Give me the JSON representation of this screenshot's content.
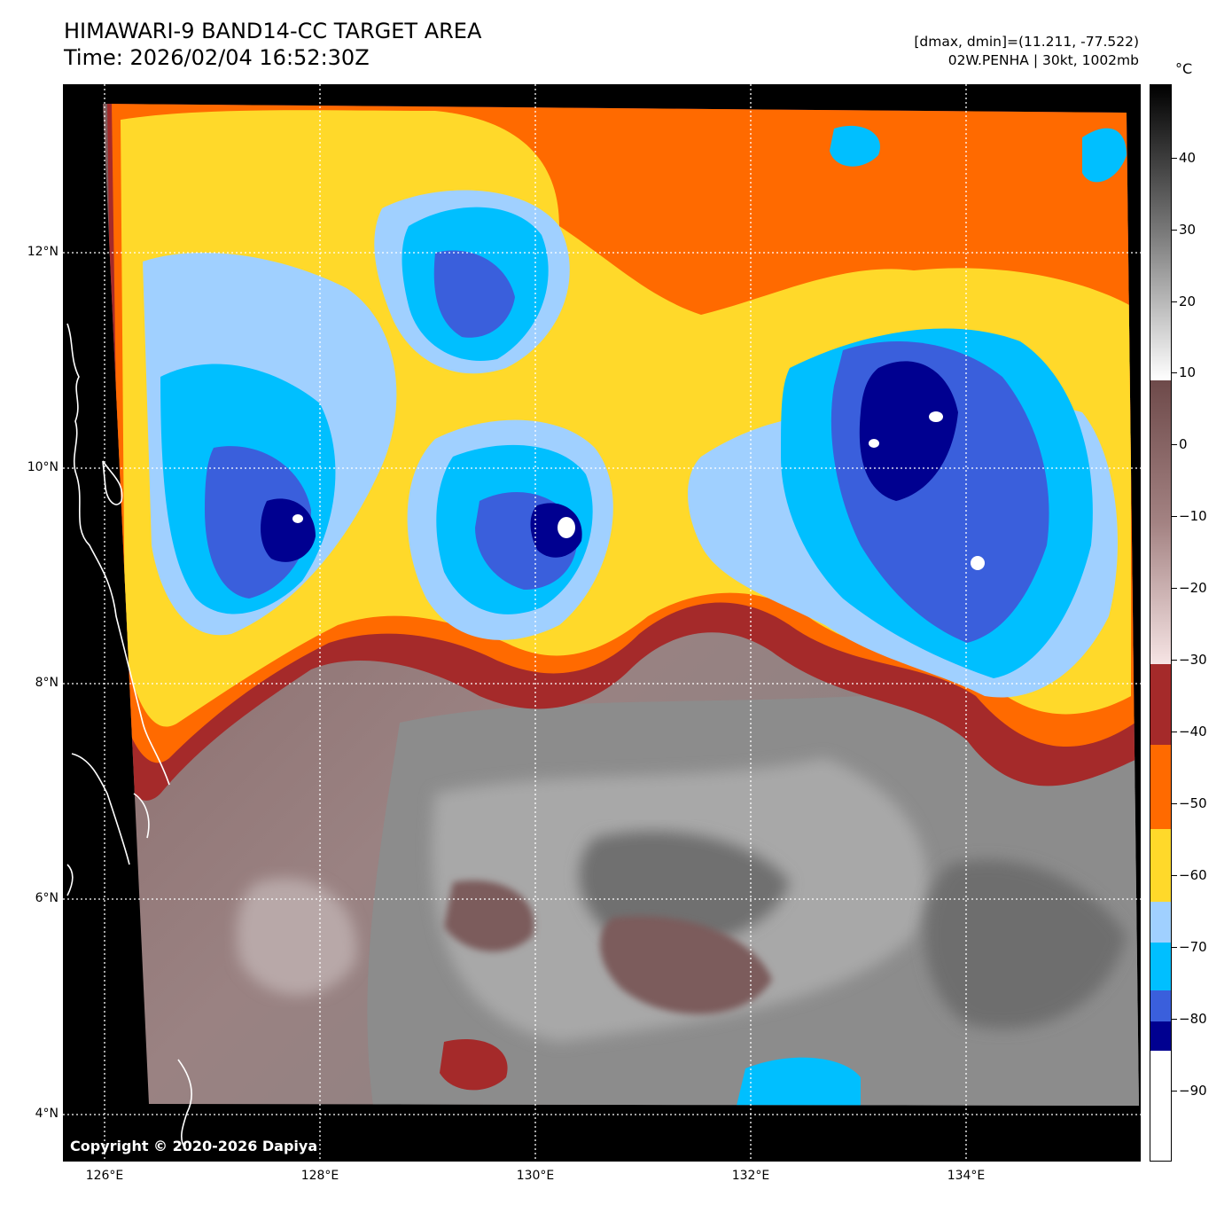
{
  "header": {
    "title_line1": "HIMAWARI-9 BAND14-CC TARGET AREA",
    "title_line2": "Time: 2026/02/04 16:52:30Z",
    "meta_line1": "[dmax, dmin]=(11.211, -77.522)",
    "meta_line2": "02W.PENHA | 30kt, 1002mb"
  },
  "map": {
    "lat_labels": [
      "12°N",
      "10°N",
      "8°N",
      "6°N",
      "4°N"
    ],
    "lon_labels": [
      "126°E",
      "128°E",
      "130°E",
      "132°E",
      "134°E"
    ],
    "copyright": "Copyright © 2020-2026 Dapiya"
  },
  "colorbar": {
    "unit": "°C",
    "labels": [
      "40",
      "30",
      "20",
      "10",
      "0",
      "−10",
      "−20",
      "−30",
      "−40",
      "−50",
      "−60",
      "−70",
      "−80",
      "−90"
    ],
    "colors": {
      "white": "#ffffff",
      "navy": "#000090",
      "royal_blue": "#3a5fdc",
      "deep_sky_blue": "#00bfff",
      "light_sky_blue": "#a0d0ff",
      "gold": "#ffd92a",
      "orange": "#ff6a00",
      "brown_red": "#a52a2a",
      "pink": "#f3dede",
      "mauve": "#8a6666"
    }
  }
}
